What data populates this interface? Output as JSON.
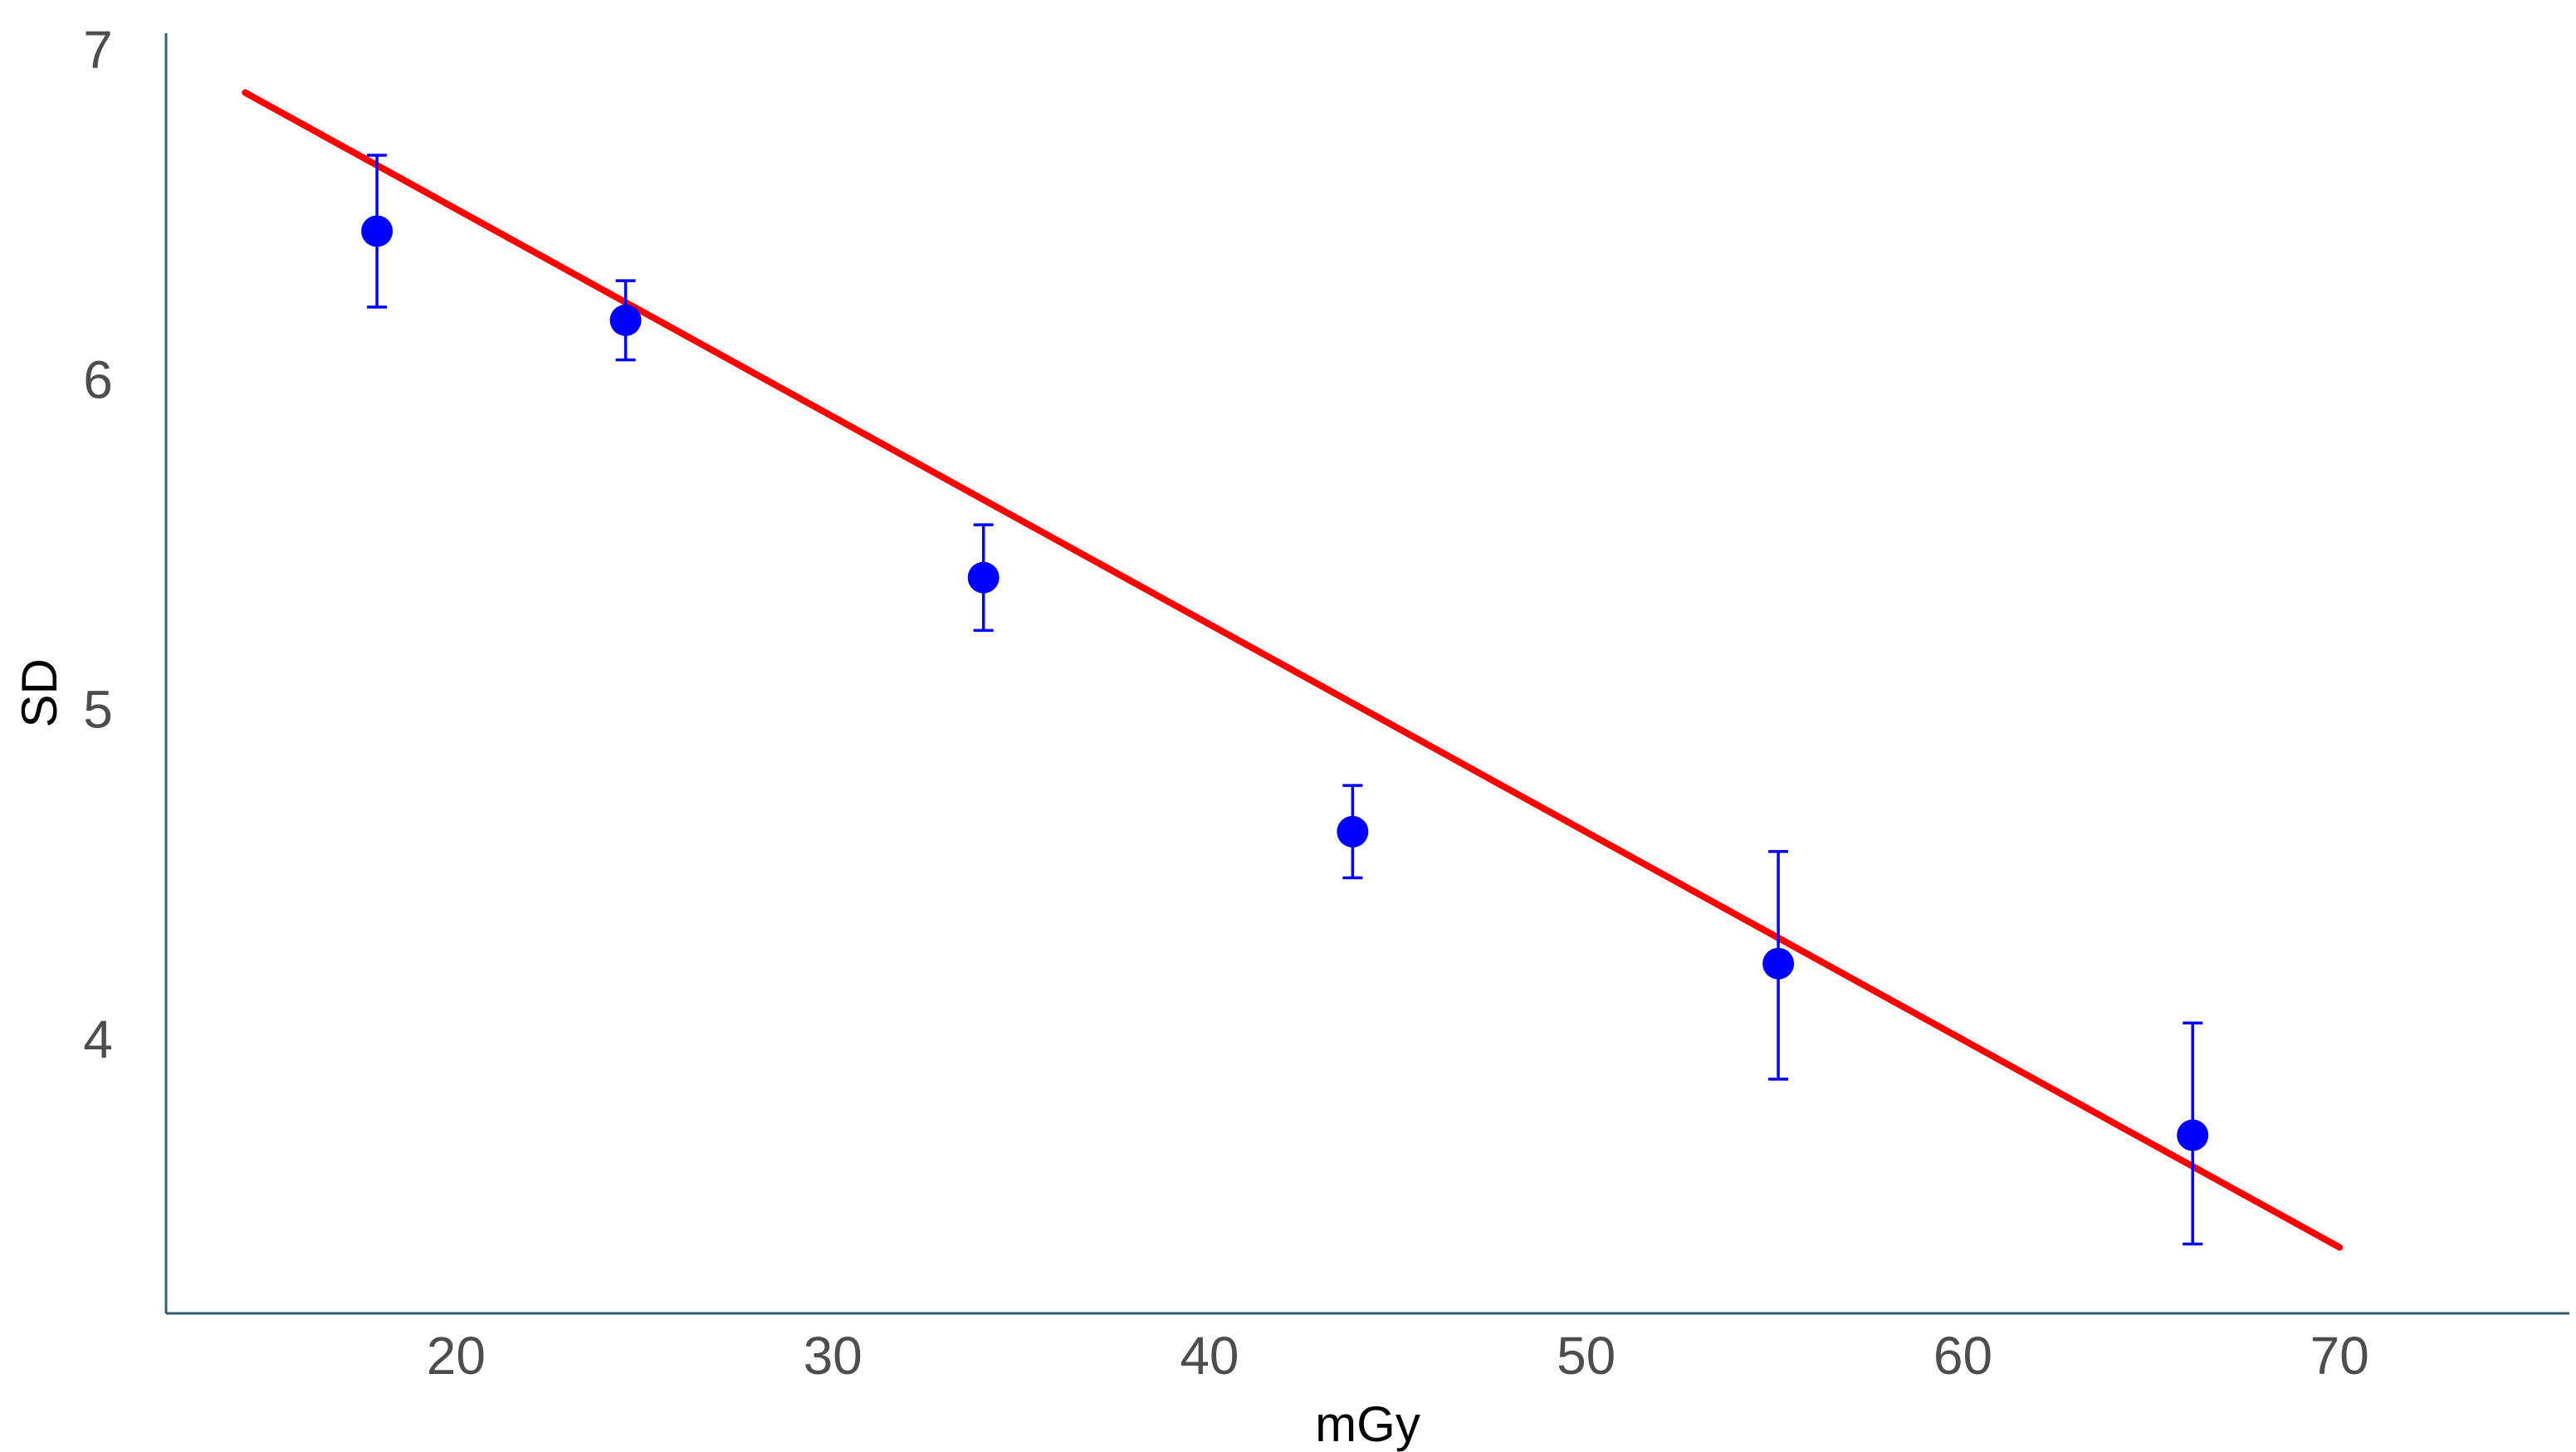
{
  "chart_data": {
    "type": "scatter",
    "title": "",
    "xlabel": "mGy",
    "ylabel": "SD",
    "xlim": [
      12.3,
      76.1
    ],
    "ylim": [
      3.17,
      7.05
    ],
    "xticks": [
      20,
      30,
      40,
      50,
      60,
      70
    ],
    "yticks": [
      4,
      5,
      6,
      7
    ],
    "grid": false,
    "legend": "none",
    "points": [
      {
        "x": 17.9,
        "y": 6.45,
        "ymin": 6.22,
        "ymax": 6.68
      },
      {
        "x": 24.5,
        "y": 6.18,
        "ymin": 6.06,
        "ymax": 6.3
      },
      {
        "x": 34.0,
        "y": 5.4,
        "ymin": 5.24,
        "ymax": 5.56
      },
      {
        "x": 43.8,
        "y": 4.63,
        "ymin": 4.49,
        "ymax": 4.77
      },
      {
        "x": 55.1,
        "y": 4.23,
        "ymin": 3.88,
        "ymax": 4.57
      },
      {
        "x": 66.1,
        "y": 3.71,
        "ymin": 3.38,
        "ymax": 4.05
      }
    ],
    "fit_line": [
      {
        "x": 14.4,
        "y": 6.87
      },
      {
        "x": 70.0,
        "y": 3.37
      }
    ],
    "colors": {
      "points": "#0000ff",
      "error_bars": "#0000ff",
      "fit_line": "#ff0000",
      "axis": "#2f5f6f",
      "tick_labels": "#4d4d4d"
    }
  }
}
